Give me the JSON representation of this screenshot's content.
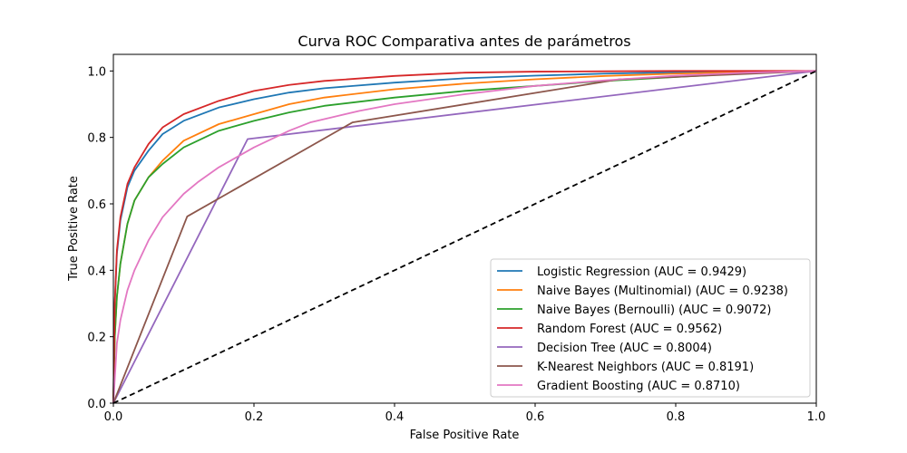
{
  "chart_data": {
    "type": "line",
    "title": "Curva ROC Comparativa antes de parámetros",
    "xlabel": "False Positive Rate",
    "ylabel": "True Positive Rate",
    "xlim": [
      0,
      1
    ],
    "ylim": [
      0,
      1.05
    ],
    "xticks": [
      "0.0",
      "0.2",
      "0.4",
      "0.6",
      "0.8",
      "1.0"
    ],
    "yticks": [
      "0.0",
      "0.2",
      "0.4",
      "0.6",
      "0.8",
      "1.0"
    ],
    "grid": false,
    "legend_position": "lower-right",
    "series": [
      {
        "name": "Logistic Regression (AUC = 0.9429)",
        "color": "#1f77b4",
        "x": [
          0,
          0.002,
          0.005,
          0.01,
          0.02,
          0.03,
          0.05,
          0.07,
          0.1,
          0.15,
          0.2,
          0.25,
          0.3,
          0.4,
          0.5,
          0.6,
          0.7,
          0.8,
          0.9,
          1.0
        ],
        "y": [
          0,
          0.3,
          0.45,
          0.55,
          0.65,
          0.7,
          0.76,
          0.81,
          0.85,
          0.89,
          0.915,
          0.935,
          0.948,
          0.965,
          0.978,
          0.986,
          0.992,
          0.996,
          0.999,
          1.0
        ]
      },
      {
        "name": "Naive Bayes (Multinomial) (AUC = 0.9238)",
        "color": "#ff7f0e",
        "x": [
          0,
          0.002,
          0.005,
          0.01,
          0.02,
          0.03,
          0.05,
          0.07,
          0.1,
          0.15,
          0.2,
          0.25,
          0.3,
          0.4,
          0.5,
          0.6,
          0.7,
          0.8,
          0.9,
          1.0
        ],
        "y": [
          0,
          0.2,
          0.32,
          0.42,
          0.54,
          0.61,
          0.68,
          0.73,
          0.79,
          0.84,
          0.87,
          0.9,
          0.92,
          0.945,
          0.962,
          0.975,
          0.985,
          0.992,
          0.997,
          1.0
        ]
      },
      {
        "name": "Naive Bayes (Bernoulli) (AUC = 0.9072)",
        "color": "#2ca02c",
        "x": [
          0,
          0.002,
          0.005,
          0.01,
          0.02,
          0.03,
          0.05,
          0.07,
          0.1,
          0.15,
          0.2,
          0.25,
          0.3,
          0.4,
          0.5,
          0.6,
          0.7,
          0.8,
          0.9,
          1.0
        ],
        "y": [
          0,
          0.2,
          0.32,
          0.42,
          0.54,
          0.61,
          0.68,
          0.72,
          0.77,
          0.82,
          0.85,
          0.875,
          0.895,
          0.92,
          0.94,
          0.955,
          0.97,
          0.982,
          0.993,
          1.0
        ]
      },
      {
        "name": "Random Forest (AUC = 0.9562)",
        "color": "#d62728",
        "x": [
          0,
          0.002,
          0.005,
          0.01,
          0.02,
          0.03,
          0.05,
          0.07,
          0.1,
          0.15,
          0.2,
          0.25,
          0.3,
          0.4,
          0.5,
          0.6,
          0.7,
          0.8,
          0.9,
          1.0
        ],
        "y": [
          0,
          0.3,
          0.46,
          0.56,
          0.66,
          0.71,
          0.78,
          0.83,
          0.87,
          0.91,
          0.94,
          0.958,
          0.97,
          0.985,
          0.995,
          0.998,
          0.999,
          1.0,
          1.0,
          1.0
        ]
      },
      {
        "name": "Decision Tree (AUC = 0.8004)",
        "color": "#9467bd",
        "x": [
          0,
          0.191,
          1.0
        ],
        "y": [
          0,
          0.795,
          1.0
        ]
      },
      {
        "name": "K-Nearest Neighbors (AUC = 0.8191)",
        "color": "#8c564b",
        "x": [
          0,
          0.105,
          0.34,
          0.72,
          1.0
        ],
        "y": [
          0,
          0.562,
          0.845,
          0.975,
          1.0
        ]
      },
      {
        "name": "Gradient Boosting (AUC = 0.8710)",
        "color": "#e377c2",
        "x": [
          0,
          0.005,
          0.01,
          0.02,
          0.03,
          0.05,
          0.07,
          0.1,
          0.12,
          0.15,
          0.2,
          0.25,
          0.28,
          0.35,
          0.4,
          0.5,
          0.6,
          0.7,
          0.8,
          0.9,
          1.0
        ],
        "y": [
          0,
          0.18,
          0.25,
          0.34,
          0.4,
          0.49,
          0.56,
          0.63,
          0.665,
          0.71,
          0.77,
          0.82,
          0.845,
          0.88,
          0.9,
          0.93,
          0.955,
          0.972,
          0.986,
          0.995,
          1.0
        ]
      }
    ],
    "reference_line": {
      "x": [
        0,
        1
      ],
      "y": [
        0,
        1
      ],
      "color": "#000000",
      "style": "dashed"
    }
  }
}
